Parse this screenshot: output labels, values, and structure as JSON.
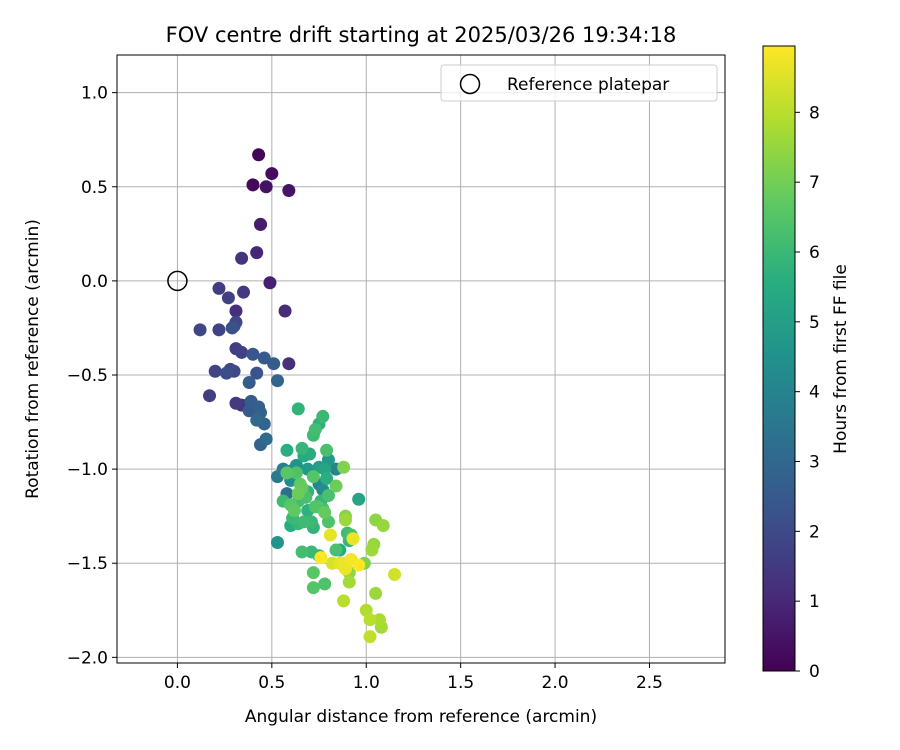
{
  "chart_data": {
    "type": "scatter",
    "title": "FOV centre drift starting at 2025/03/26 19:34:18",
    "xlabel": "Angular distance from reference (arcmin)",
    "ylabel": "Rotation from reference (arcmin)",
    "xlim": [
      -0.32,
      2.9
    ],
    "ylim": [
      -2.03,
      1.2
    ],
    "xticks": [
      0.0,
      0.5,
      1.0,
      1.5,
      2.0,
      2.5
    ],
    "xtick_labels": [
      "0.0",
      "0.5",
      "1.0",
      "1.5",
      "2.0",
      "2.5"
    ],
    "yticks": [
      1.0,
      0.5,
      0.0,
      -0.5,
      -1.0,
      -1.5,
      -2.0
    ],
    "ytick_labels": [
      "1.0",
      "0.5",
      "0.0",
      "−0.5",
      "−1.0",
      "−1.5",
      "−2.0"
    ],
    "grid": true,
    "legend": {
      "placement": "top-right",
      "entries": [
        "Reference platepar"
      ]
    },
    "reference_point": {
      "x": 0.0,
      "y": 0.0,
      "label": "Reference platepar"
    },
    "colorbar": {
      "label": "Hours from first FF file",
      "colormap": "viridis",
      "range": [
        0,
        8.95
      ],
      "ticks": [
        0,
        1,
        2,
        3,
        4,
        5,
        6,
        7,
        8
      ],
      "tick_labels": [
        "0",
        "1",
        "2",
        "3",
        "4",
        "5",
        "6",
        "7",
        "8"
      ]
    },
    "points": [
      [
        0.43,
        0.67,
        0.1
      ],
      [
        0.4,
        0.51,
        0.2
      ],
      [
        0.5,
        0.57,
        0.3
      ],
      [
        0.47,
        0.5,
        0.4
      ],
      [
        0.59,
        0.48,
        0.5
      ],
      [
        0.44,
        0.3,
        0.6
      ],
      [
        0.44,
        0.3,
        0.7
      ],
      [
        0.49,
        -0.01,
        0.8
      ],
      [
        0.42,
        0.15,
        1.0
      ],
      [
        0.34,
        0.12,
        1.3
      ],
      [
        0.57,
        -0.16,
        1.1
      ],
      [
        0.59,
        -0.44,
        1.2
      ],
      [
        0.22,
        -0.04,
        1.6
      ],
      [
        0.35,
        -0.06,
        1.5
      ],
      [
        0.27,
        -0.09,
        1.7
      ],
      [
        0.31,
        -0.16,
        1.2
      ],
      [
        0.31,
        -0.22,
        1.9
      ],
      [
        0.3,
        -0.24,
        2.0
      ],
      [
        0.29,
        -0.25,
        2.2
      ],
      [
        0.22,
        -0.26,
        1.8
      ],
      [
        0.12,
        -0.26,
        1.9
      ],
      [
        0.31,
        -0.36,
        1.6
      ],
      [
        0.34,
        -0.38,
        1.7
      ],
      [
        0.4,
        -0.39,
        2.4
      ],
      [
        0.46,
        -0.41,
        2.5
      ],
      [
        0.51,
        -0.44,
        2.6
      ],
      [
        0.2,
        -0.48,
        1.8
      ],
      [
        0.28,
        -0.47,
        1.9
      ],
      [
        0.26,
        -0.49,
        2.1
      ],
      [
        0.3,
        -0.48,
        2.0
      ],
      [
        0.42,
        -0.49,
        2.3
      ],
      [
        0.38,
        -0.54,
        2.6
      ],
      [
        0.53,
        -0.53,
        2.9
      ],
      [
        0.17,
        -0.61,
        1.7
      ],
      [
        0.31,
        -0.65,
        1.5
      ],
      [
        0.34,
        -0.66,
        1.4
      ],
      [
        0.37,
        -0.66,
        1.2
      ],
      [
        0.39,
        -0.64,
        2.6
      ],
      [
        0.43,
        -0.67,
        2.7
      ],
      [
        0.44,
        -0.7,
        2.8
      ],
      [
        0.38,
        -0.69,
        2.5
      ],
      [
        0.42,
        -0.74,
        3.0
      ],
      [
        0.46,
        -0.76,
        2.9
      ],
      [
        0.47,
        -0.84,
        3.1
      ],
      [
        0.44,
        -0.87,
        2.8
      ],
      [
        0.64,
        -0.68,
        5.8
      ],
      [
        0.77,
        -0.72,
        6.0
      ],
      [
        0.75,
        -0.76,
        5.7
      ],
      [
        0.73,
        -0.79,
        6.2
      ],
      [
        0.72,
        -0.82,
        6.1
      ],
      [
        0.58,
        -0.9,
        5.6
      ],
      [
        0.66,
        -0.89,
        5.9
      ],
      [
        0.7,
        -0.92,
        5.5
      ],
      [
        0.67,
        -0.93,
        5.4
      ],
      [
        0.79,
        -0.9,
        6.3
      ],
      [
        0.53,
        -1.04,
        3.6
      ],
      [
        0.56,
        -1.0,
        3.8
      ],
      [
        0.6,
        -1.01,
        4.2
      ],
      [
        0.63,
        -0.98,
        4.5
      ],
      [
        0.69,
        -1.0,
        4.8
      ],
      [
        0.75,
        -0.99,
        5.0
      ],
      [
        0.8,
        -0.95,
        4.7
      ],
      [
        0.78,
        -1.0,
        5.2
      ],
      [
        0.84,
        -1.0,
        4.0
      ],
      [
        0.88,
        -0.99,
        7.2
      ],
      [
        0.58,
        -1.02,
        6.6
      ],
      [
        0.63,
        -1.02,
        6.4
      ],
      [
        0.72,
        -1.04,
        6.5
      ],
      [
        0.65,
        -1.08,
        6.7
      ],
      [
        0.6,
        -1.06,
        4.3
      ],
      [
        0.75,
        -1.08,
        4.1
      ],
      [
        0.77,
        -1.11,
        4.4
      ],
      [
        0.79,
        -1.05,
        5.6
      ],
      [
        0.84,
        -1.09,
        6.9
      ],
      [
        0.58,
        -1.13,
        3.3
      ],
      [
        0.66,
        -1.1,
        6.8
      ],
      [
        0.69,
        -1.12,
        5.8
      ],
      [
        0.8,
        -1.14,
        6.3
      ],
      [
        0.76,
        -1.17,
        5.9
      ],
      [
        0.56,
        -1.17,
        6.1
      ],
      [
        0.6,
        -1.19,
        6.6
      ],
      [
        0.64,
        -1.17,
        6.2
      ],
      [
        0.62,
        -1.22,
        6.7
      ],
      [
        0.61,
        -1.26,
        6.0
      ],
      [
        0.69,
        -1.22,
        5.7
      ],
      [
        0.73,
        -1.2,
        6.4
      ],
      [
        0.74,
        -1.2,
        6.5
      ],
      [
        0.77,
        -1.21,
        6.2
      ],
      [
        0.96,
        -1.16,
        5.2
      ],
      [
        0.78,
        -1.23,
        6.8
      ],
      [
        0.6,
        -1.3,
        5.5
      ],
      [
        0.64,
        -1.29,
        5.9
      ],
      [
        0.67,
        -1.28,
        6.1
      ],
      [
        0.71,
        -1.28,
        6.0
      ],
      [
        0.72,
        -1.31,
        5.8
      ],
      [
        0.8,
        -1.28,
        6.4
      ],
      [
        0.89,
        -1.25,
        7.3
      ],
      [
        0.89,
        -1.27,
        7.6
      ],
      [
        1.05,
        -1.27,
        7.4
      ],
      [
        1.09,
        -1.3,
        7.5
      ],
      [
        0.53,
        -1.39,
        4.6
      ],
      [
        0.9,
        -1.34,
        6.1
      ],
      [
        0.92,
        -1.35,
        6.3
      ],
      [
        0.91,
        -1.38,
        5.9
      ],
      [
        0.81,
        -1.35,
        8.6
      ],
      [
        0.93,
        -1.37,
        8.7
      ],
      [
        1.04,
        -1.4,
        7.5
      ],
      [
        1.03,
        -1.43,
        7.6
      ],
      [
        0.66,
        -1.44,
        6.2
      ],
      [
        0.71,
        -1.44,
        6.0
      ],
      [
        0.75,
        -1.46,
        5.8
      ],
      [
        0.84,
        -1.43,
        6.3
      ],
      [
        0.86,
        -1.43,
        5.4
      ],
      [
        0.76,
        -1.47,
        8.9
      ],
      [
        0.82,
        -1.5,
        8.4
      ],
      [
        0.86,
        -1.5,
        8.6
      ],
      [
        0.88,
        -1.5,
        8.7
      ],
      [
        0.92,
        -1.48,
        8.8
      ],
      [
        0.96,
        -1.51,
        8.9
      ],
      [
        0.89,
        -1.53,
        8.7
      ],
      [
        0.91,
        -1.55,
        7.4
      ],
      [
        0.99,
        -1.5,
        7.2
      ],
      [
        1.15,
        -1.56,
        8.3
      ],
      [
        0.72,
        -1.55,
        6.6
      ],
      [
        0.78,
        -1.61,
        6.4
      ],
      [
        0.72,
        -1.63,
        6.5
      ],
      [
        0.91,
        -1.6,
        7.7
      ],
      [
        0.88,
        -1.7,
        8.0
      ],
      [
        1.05,
        -1.66,
        7.6
      ],
      [
        1.0,
        -1.75,
        7.9
      ],
      [
        1.02,
        -1.8,
        8.0
      ],
      [
        1.07,
        -1.8,
        7.8
      ],
      [
        1.08,
        -1.84,
        7.7
      ],
      [
        1.02,
        -1.89,
        8.1
      ],
      [
        0.64,
        -1.13,
        6.9
      ],
      [
        0.68,
        -1.15,
        6.3
      ]
    ]
  }
}
